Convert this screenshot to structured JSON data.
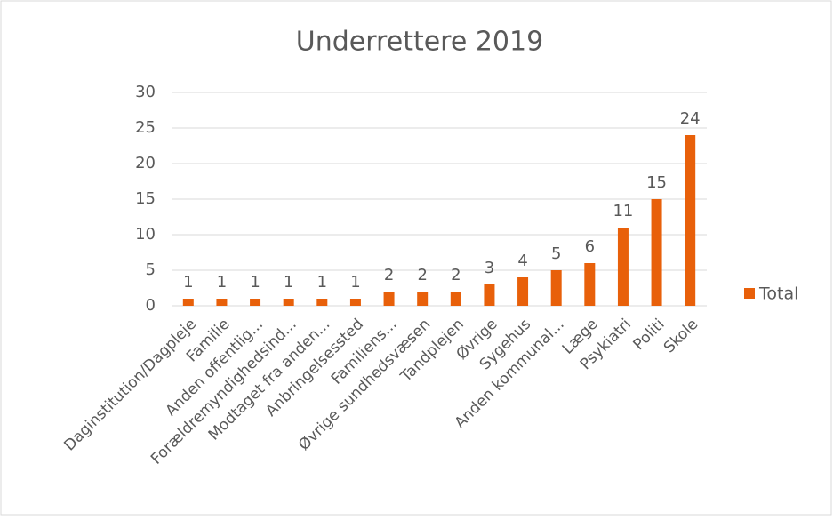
{
  "chart_data": {
    "type": "bar",
    "title": "Underrettere 2019",
    "categories": [
      "Daginstitution/Dagpleje",
      "Familie",
      "Anden offentlig...",
      "Forældremyndighedsind...",
      "Modtaget fra anden...",
      "Anbringelsessted",
      "Familiens...",
      "Øvrige sundhedsvæsen",
      "Tandplejen",
      "Øvrige",
      "Sygehus",
      "Anden kommunal...",
      "Læge",
      "Psykiatri",
      "Politi",
      "Skole"
    ],
    "series": [
      {
        "name": "Total",
        "color": "#e8600a",
        "values": [
          1,
          1,
          1,
          1,
          1,
          1,
          2,
          2,
          2,
          3,
          4,
          5,
          6,
          11,
          15,
          24
        ]
      }
    ],
    "ylim": [
      0,
      30
    ],
    "yticks": [
      0,
      5,
      10,
      15,
      20,
      25,
      30
    ],
    "grid": true,
    "legend": "right",
    "data_labels": true
  }
}
